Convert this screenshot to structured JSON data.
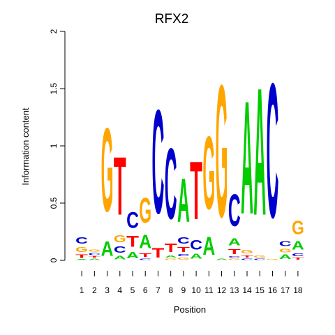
{
  "chart_data": {
    "type": "sequence-logo",
    "title": "RFX2",
    "xlabel": "Position",
    "ylabel": "Information content",
    "ylim": [
      0,
      2
    ],
    "yticks": [
      {
        "value": 0,
        "label": "0"
      },
      {
        "value": 0.5,
        "label": "0.5"
      },
      {
        "value": 1,
        "label": "1"
      },
      {
        "value": 1.5,
        "label": "1.5"
      },
      {
        "value": 2,
        "label": "2"
      }
    ],
    "positions": [
      {
        "label": "1",
        "letters": [
          [
            "A",
            0.01
          ],
          [
            "T",
            0.05
          ],
          [
            "G",
            0.07
          ],
          [
            "C",
            0.09
          ]
        ]
      },
      {
        "label": "2",
        "letters": [
          [
            "A",
            0.02
          ],
          [
            "T",
            0.02
          ],
          [
            "C",
            0.03
          ],
          [
            "G",
            0.03
          ]
        ]
      },
      {
        "label": "3",
        "letters": [
          [
            "A",
            0.2
          ],
          [
            "G",
            1.17
          ]
        ]
      },
      {
        "label": "4",
        "letters": [
          [
            "A",
            0.05
          ],
          [
            "C",
            0.09
          ],
          [
            "G",
            0.1
          ],
          [
            "T",
            0.81
          ]
        ]
      },
      {
        "label": "5",
        "letters": [
          [
            "A",
            0.09
          ],
          [
            "T",
            0.15
          ],
          [
            "C",
            0.22
          ]
        ]
      },
      {
        "label": "6",
        "letters": [
          [
            "C",
            0.02
          ],
          [
            "T",
            0.05
          ],
          [
            "A",
            0.19
          ],
          [
            "G",
            0.35
          ]
        ]
      },
      {
        "label": "7",
        "letters": [
          [
            "T",
            0.13
          ],
          [
            "C",
            1.45
          ]
        ]
      },
      {
        "label": "8",
        "letters": [
          [
            "G",
            0.02
          ],
          [
            "A",
            0.03
          ],
          [
            "T",
            0.12
          ],
          [
            "C",
            0.99
          ]
        ]
      },
      {
        "label": "9",
        "letters": [
          [
            "G",
            0.03
          ],
          [
            "C",
            0.03
          ],
          [
            "T",
            0.07
          ],
          [
            "C",
            0.09
          ],
          [
            "A",
            0.61
          ]
        ]
      },
      {
        "label": "10",
        "letters": [
          [
            "A",
            0.07
          ],
          [
            "C",
            0.13
          ],
          [
            "T",
            0.81
          ]
        ]
      },
      {
        "label": "11",
        "letters": [
          [
            "A",
            0.25
          ],
          [
            "G",
            1.02
          ]
        ]
      },
      {
        "label": "12",
        "letters": [
          [
            "A",
            0.02
          ],
          [
            "G",
            1.85
          ]
        ]
      },
      {
        "label": "13",
        "letters": [
          [
            "G",
            0.02
          ],
          [
            "C",
            0.02
          ],
          [
            "T",
            0.07
          ],
          [
            "A",
            0.1
          ],
          [
            "C",
            0.45
          ]
        ]
      },
      {
        "label": "14",
        "letters": [
          [
            "C",
            0.02
          ],
          [
            "T",
            0.03
          ],
          [
            "G",
            0.05
          ],
          [
            "A",
            1.58
          ]
        ]
      },
      {
        "label": "15",
        "letters": [
          [
            "C",
            0.02
          ],
          [
            "G",
            0.03
          ],
          [
            "A",
            1.78
          ]
        ]
      },
      {
        "label": "16",
        "letters": [
          [
            "G",
            0.01
          ],
          [
            "C",
            1.88
          ]
        ]
      },
      {
        "label": "17",
        "letters": [
          [
            "A",
            0.06
          ],
          [
            "G",
            0.05
          ],
          [
            "C",
            0.07
          ]
        ]
      },
      {
        "label": "18",
        "letters": [
          [
            "T",
            0.03
          ],
          [
            "C",
            0.04
          ],
          [
            "A",
            0.12
          ],
          [
            "G",
            0.19
          ]
        ]
      }
    ],
    "colors": {
      "A": "#00cc00",
      "C": "#0000cc",
      "G": "#ffa500",
      "T": "#ff0000"
    }
  }
}
